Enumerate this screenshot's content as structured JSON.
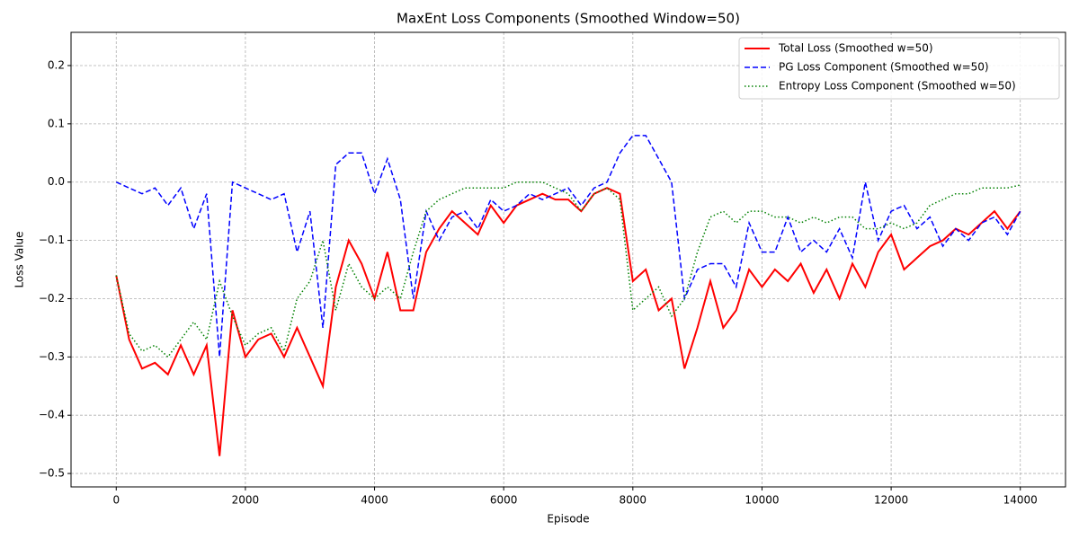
{
  "chart_data": {
    "type": "line",
    "title": "MaxEnt Loss Components (Smoothed Window=50)",
    "x_label": "Episode",
    "y_label": "Loss Value",
    "x": [
      0,
      200,
      400,
      600,
      800,
      1000,
      1200,
      1400,
      1600,
      1800,
      2000,
      2200,
      2400,
      2600,
      2800,
      3000,
      3200,
      3400,
      3600,
      3800,
      4000,
      4200,
      4400,
      4600,
      4800,
      5000,
      5200,
      5400,
      5600,
      5800,
      6000,
      6200,
      6400,
      6600,
      6800,
      7000,
      7200,
      7400,
      7600,
      7800,
      8000,
      8200,
      8400,
      8600,
      8800,
      9000,
      9200,
      9400,
      9600,
      9800,
      10000,
      10200,
      10400,
      10600,
      10800,
      11000,
      11200,
      11400,
      11600,
      11800,
      12000,
      12200,
      12400,
      12600,
      12800,
      13000,
      13200,
      13400,
      13600,
      13800,
      14000
    ],
    "series": [
      {
        "name": "Total Loss (Smoothed w=50)",
        "color": "#ff0000",
        "dash": "solid",
        "width": 2,
        "values": [
          -0.16,
          -0.27,
          -0.32,
          -0.31,
          -0.33,
          -0.28,
          -0.33,
          -0.28,
          -0.47,
          -0.22,
          -0.3,
          -0.27,
          -0.26,
          -0.3,
          -0.25,
          -0.3,
          -0.35,
          -0.18,
          -0.1,
          -0.14,
          -0.2,
          -0.12,
          -0.22,
          -0.22,
          -0.12,
          -0.08,
          -0.05,
          -0.07,
          -0.09,
          -0.04,
          -0.07,
          -0.04,
          -0.03,
          -0.02,
          -0.03,
          -0.03,
          -0.05,
          -0.02,
          -0.01,
          -0.02,
          -0.17,
          -0.15,
          -0.22,
          -0.2,
          -0.32,
          -0.25,
          -0.17,
          -0.25,
          -0.22,
          -0.15,
          -0.18,
          -0.15,
          -0.17,
          -0.14,
          -0.19,
          -0.15,
          -0.2,
          -0.14,
          -0.18,
          -0.12,
          -0.09,
          -0.15,
          -0.13,
          -0.11,
          -0.1,
          -0.08,
          -0.09,
          -0.07,
          -0.05,
          -0.08,
          -0.05
        ]
      },
      {
        "name": "PG Loss Component (Smoothed w=50)",
        "color": "#0000ff",
        "dash": "dashed",
        "width": 1.5,
        "values": [
          0.0,
          -0.01,
          -0.02,
          -0.01,
          -0.04,
          -0.01,
          -0.08,
          -0.02,
          -0.3,
          0.0,
          -0.01,
          -0.02,
          -0.03,
          -0.02,
          -0.12,
          -0.05,
          -0.25,
          0.03,
          0.05,
          0.05,
          -0.02,
          0.04,
          -0.03,
          -0.2,
          -0.05,
          -0.1,
          -0.06,
          -0.05,
          -0.08,
          -0.03,
          -0.05,
          -0.04,
          -0.02,
          -0.03,
          -0.02,
          -0.01,
          -0.04,
          -0.01,
          0.0,
          0.05,
          0.08,
          0.08,
          0.04,
          0.0,
          -0.2,
          -0.15,
          -0.14,
          -0.14,
          -0.18,
          -0.07,
          -0.12,
          -0.12,
          -0.06,
          -0.12,
          -0.1,
          -0.12,
          -0.08,
          -0.13,
          0.0,
          -0.1,
          -0.05,
          -0.04,
          -0.08,
          -0.06,
          -0.11,
          -0.08,
          -0.1,
          -0.07,
          -0.06,
          -0.09,
          -0.05
        ]
      },
      {
        "name": "Entropy Loss Component (Smoothed w=50)",
        "color": "#008000",
        "dash": "dotted",
        "width": 1.5,
        "values": [
          -0.16,
          -0.26,
          -0.29,
          -0.28,
          -0.3,
          -0.27,
          -0.24,
          -0.27,
          -0.17,
          -0.23,
          -0.28,
          -0.26,
          -0.25,
          -0.29,
          -0.2,
          -0.17,
          -0.1,
          -0.22,
          -0.14,
          -0.18,
          -0.2,
          -0.18,
          -0.2,
          -0.12,
          -0.05,
          -0.03,
          -0.02,
          -0.01,
          -0.01,
          -0.01,
          -0.01,
          0.0,
          0.0,
          0.0,
          -0.01,
          -0.02,
          -0.05,
          -0.02,
          -0.01,
          -0.03,
          -0.22,
          -0.2,
          -0.18,
          -0.23,
          -0.2,
          -0.12,
          -0.06,
          -0.05,
          -0.07,
          -0.05,
          -0.05,
          -0.06,
          -0.06,
          -0.07,
          -0.06,
          -0.07,
          -0.06,
          -0.06,
          -0.08,
          -0.08,
          -0.07,
          -0.08,
          -0.07,
          -0.04,
          -0.03,
          -0.02,
          -0.02,
          -0.01,
          -0.01,
          -0.01,
          -0.005
        ]
      }
    ],
    "xlim": [
      -700,
      14700
    ],
    "ylim": [
      -0.523,
      0.257
    ],
    "xticks": [
      0,
      2000,
      4000,
      6000,
      8000,
      10000,
      12000,
      14000
    ],
    "yticks": [
      {
        "value": -0.5,
        "label": "−0.5"
      },
      {
        "value": -0.4,
        "label": "−0.4"
      },
      {
        "value": -0.3,
        "label": "−0.3"
      },
      {
        "value": -0.2,
        "label": "−0.2"
      },
      {
        "value": -0.1,
        "label": "−0.1"
      },
      {
        "value": 0,
        "label": "0.0"
      },
      0.1,
      0.2
    ],
    "grid": true,
    "legend": "upper right"
  }
}
